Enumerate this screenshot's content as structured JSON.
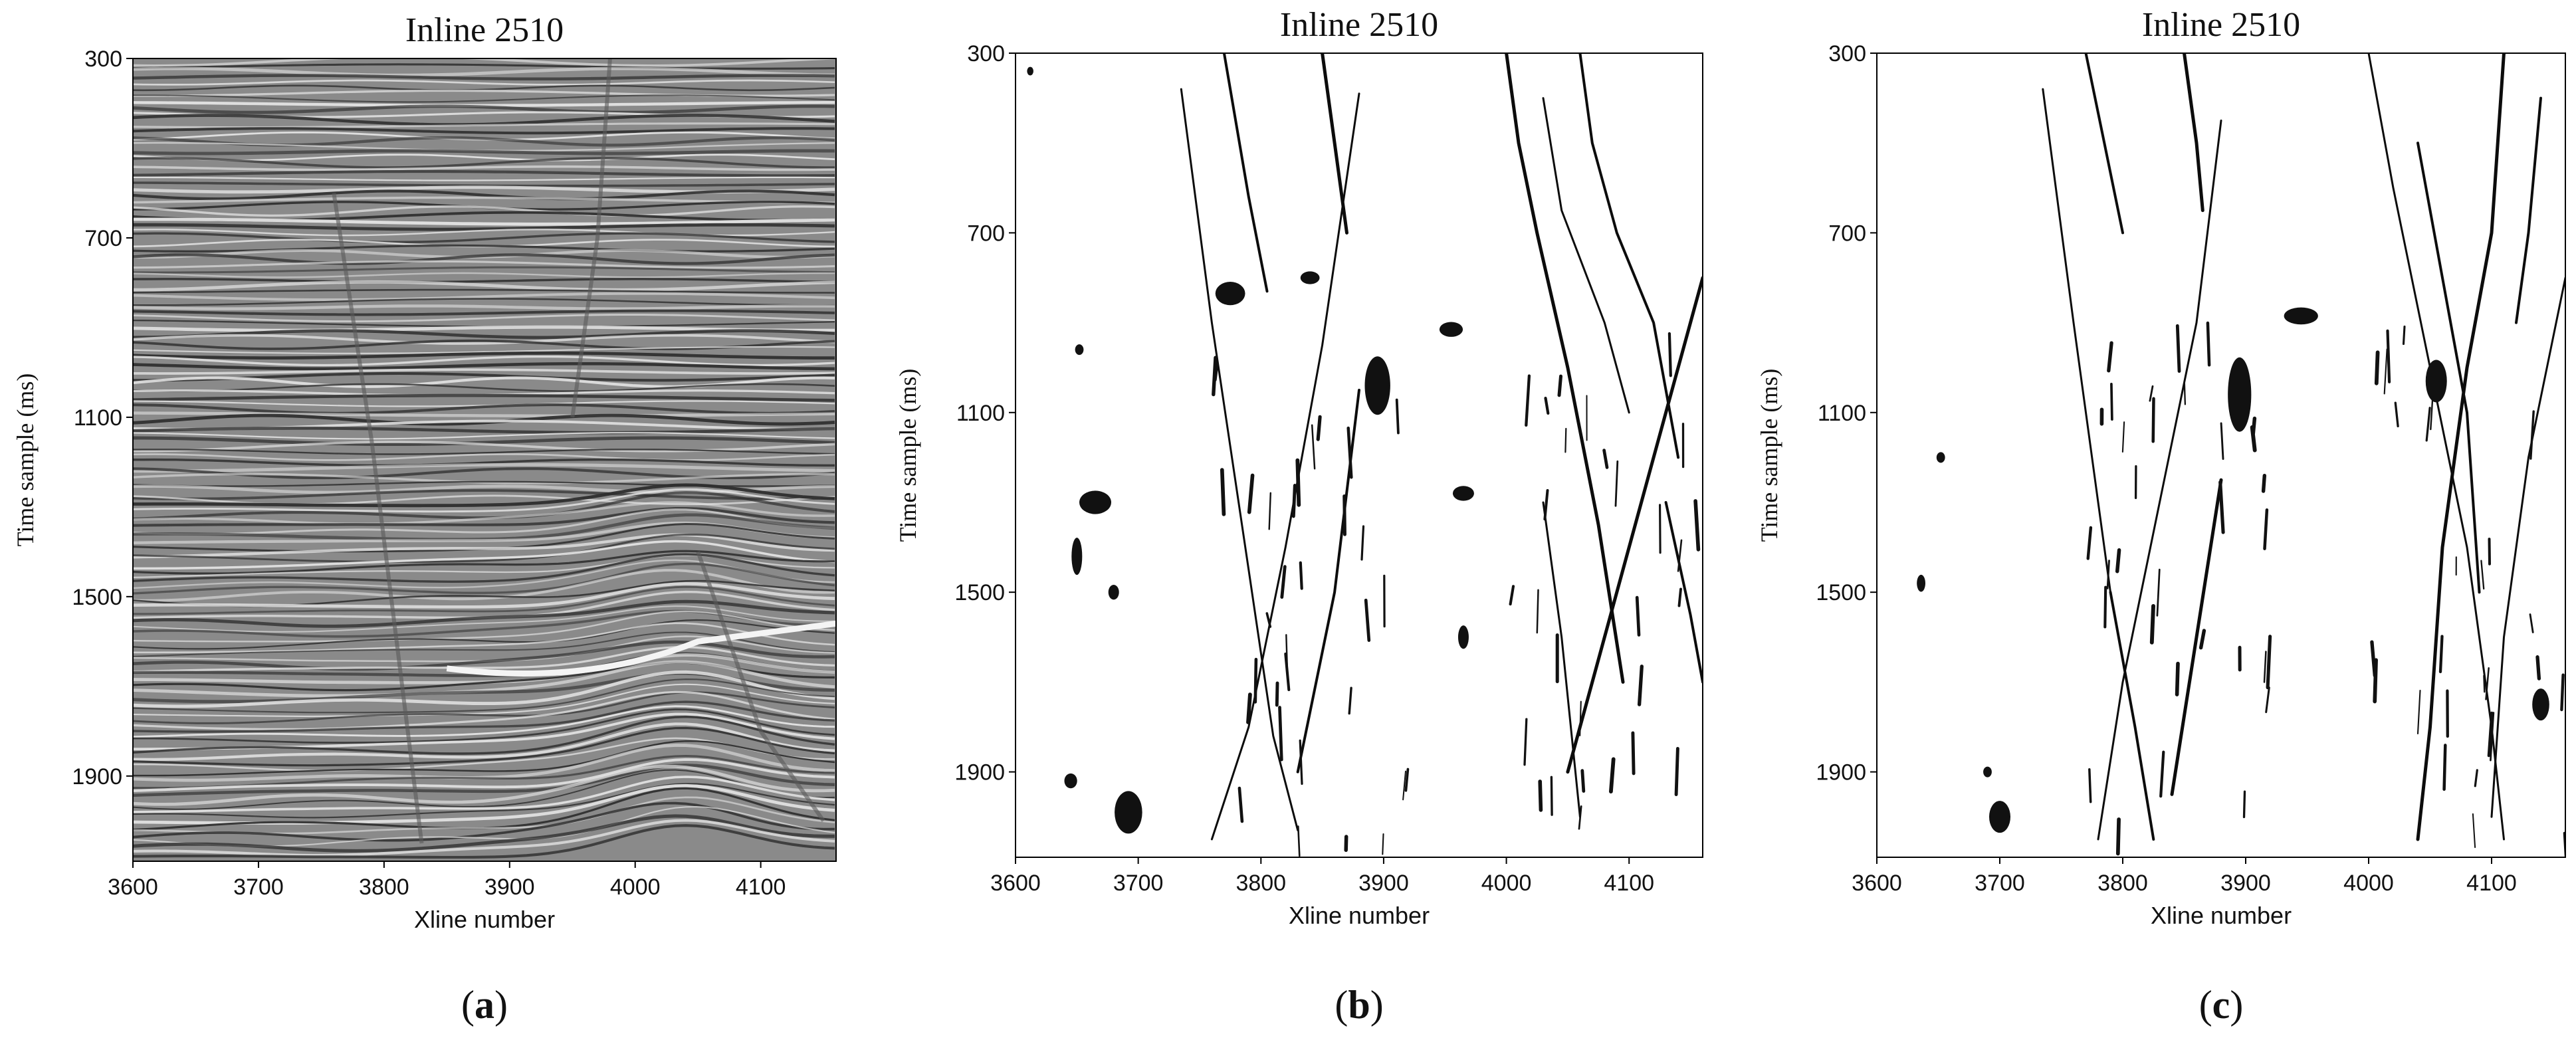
{
  "chart_data": [
    {
      "panel_label": "a",
      "type": "heatmap",
      "subtype": "seismic-amplitude-section",
      "title": "Inline 2510",
      "xlabel": "Xline number",
      "ylabel": "Time sample (ms)",
      "xlim": [
        3600,
        4160
      ],
      "ylim": [
        300,
        2090
      ],
      "y_inverted": true,
      "xticks": [
        "3600",
        "3700",
        "3800",
        "3900",
        "4000",
        "4100"
      ],
      "yticks": [
        "300",
        "700",
        "1100",
        "1500",
        "1900"
      ],
      "colormap": "gray",
      "grid": false,
      "faults": [
        {
          "points": [
            [
              3760,
              600
            ],
            [
              3790,
              1150
            ],
            [
              3810,
              1600
            ],
            [
              3830,
              2050
            ]
          ]
        },
        {
          "points": [
            [
              3980,
              300
            ],
            [
              3970,
              700
            ],
            [
              3950,
              1100
            ]
          ]
        },
        {
          "points": [
            [
              4050,
              1400
            ],
            [
              4100,
              1800
            ],
            [
              4150,
              2000
            ]
          ]
        }
      ]
    },
    {
      "panel_label": "b",
      "type": "heatmap",
      "subtype": "fault-probability",
      "title": "Inline 2510",
      "xlabel": "Xline number",
      "ylabel": "Time sample (ms)",
      "xlim": [
        3600,
        4160
      ],
      "ylim": [
        300,
        2090
      ],
      "y_inverted": true,
      "xticks": [
        "3600",
        "3700",
        "3800",
        "3900",
        "4000",
        "4100"
      ],
      "yticks": [
        "300",
        "700",
        "1100",
        "1500",
        "1900"
      ],
      "colormap": "gray_r",
      "grid": false,
      "faults": [
        {
          "points": [
            [
              3735,
              380
            ],
            [
              3760,
              900
            ],
            [
              3790,
              1450
            ],
            [
              3810,
              1820
            ],
            [
              3830,
              2030
            ]
          ]
        },
        {
          "points": [
            [
              3770,
              300
            ],
            [
              3790,
              620
            ],
            [
              3805,
              830
            ]
          ]
        },
        {
          "points": [
            [
              3850,
              300
            ],
            [
              3860,
              500
            ],
            [
              3870,
              700
            ]
          ]
        },
        {
          "points": [
            [
              3880,
              390
            ],
            [
              3850,
              950
            ],
            [
              3820,
              1400
            ],
            [
              3790,
              1800
            ],
            [
              3760,
              2050
            ]
          ]
        },
        {
          "points": [
            [
              3880,
              1050
            ],
            [
              3860,
              1500
            ],
            [
              3830,
              1900
            ]
          ]
        },
        {
          "points": [
            [
              4000,
              300
            ],
            [
              4010,
              500
            ],
            [
              4025,
              700
            ],
            [
              4050,
              1000
            ],
            [
              4075,
              1350
            ],
            [
              4095,
              1700
            ]
          ]
        },
        {
          "points": [
            [
              4030,
              400
            ],
            [
              4045,
              650
            ],
            [
              4080,
              900
            ],
            [
              4100,
              1100
            ]
          ]
        },
        {
          "points": [
            [
              4060,
              300
            ],
            [
              4070,
              500
            ],
            [
              4090,
              700
            ],
            [
              4120,
              900
            ],
            [
              4140,
              1200
            ]
          ]
        },
        {
          "points": [
            [
              4160,
              800
            ],
            [
              4120,
              1200
            ],
            [
              4080,
              1600
            ],
            [
              4050,
              1900
            ]
          ]
        },
        {
          "points": [
            [
              4030,
              1300
            ],
            [
              4045,
              1600
            ],
            [
              4060,
              2000
            ]
          ]
        },
        {
          "points": [
            [
              4130,
              1300
            ],
            [
              4150,
              1550
            ],
            [
              4160,
              1700
            ]
          ]
        }
      ],
      "blobs": [
        {
          "x": 3665,
          "y": 1300,
          "w": 30,
          "h": 22
        },
        {
          "x": 3650,
          "y": 1420,
          "w": 10,
          "h": 35
        },
        {
          "x": 3680,
          "y": 1500,
          "w": 10,
          "h": 14
        },
        {
          "x": 3692,
          "y": 1990,
          "w": 26,
          "h": 40
        },
        {
          "x": 3645,
          "y": 1920,
          "w": 12,
          "h": 14
        },
        {
          "x": 3775,
          "y": 835,
          "w": 28,
          "h": 22
        },
        {
          "x": 3840,
          "y": 800,
          "w": 18,
          "h": 12
        },
        {
          "x": 3895,
          "y": 1040,
          "w": 24,
          "h": 55
        },
        {
          "x": 3955,
          "y": 915,
          "w": 22,
          "h": 14
        },
        {
          "x": 3965,
          "y": 1280,
          "w": 20,
          "h": 14
        },
        {
          "x": 3965,
          "y": 1600,
          "w": 10,
          "h": 22
        },
        {
          "x": 3652,
          "y": 960,
          "w": 8,
          "h": 10
        },
        {
          "x": 3612,
          "y": 340,
          "w": 6,
          "h": 8
        }
      ]
    },
    {
      "panel_label": "c",
      "type": "heatmap",
      "subtype": "fault-probability",
      "title": "Inline 2510",
      "xlabel": "Xline number",
      "ylabel": "Time sample (ms)",
      "xlim": [
        3600,
        4160
      ],
      "ylim": [
        300,
        2090
      ],
      "y_inverted": true,
      "xticks": [
        "3600",
        "3700",
        "3800",
        "3900",
        "4000",
        "4100"
      ],
      "yticks": [
        "300",
        "700",
        "1100",
        "1500",
        "1900"
      ],
      "colormap": "gray_r",
      "grid": false,
      "faults": [
        {
          "points": [
            [
              3735,
              380
            ],
            [
              3760,
              900
            ],
            [
              3780,
              1300
            ],
            [
              3790,
              1500
            ]
          ]
        },
        {
          "points": [
            [
              3770,
              300
            ],
            [
              3785,
              500
            ],
            [
              3800,
              700
            ]
          ]
        },
        {
          "points": [
            [
              3850,
              300
            ],
            [
              3860,
              500
            ],
            [
              3865,
              650
            ]
          ]
        },
        {
          "points": [
            [
              3880,
              450
            ],
            [
              3860,
              900
            ],
            [
              3830,
              1300
            ],
            [
              3800,
              1700
            ],
            [
              3780,
              2050
            ]
          ]
        },
        {
          "points": [
            [
              3790,
              1500
            ],
            [
              3810,
              1800
            ],
            [
              3825,
              2050
            ]
          ]
        },
        {
          "points": [
            [
              3880,
              1250
            ],
            [
              3860,
              1600
            ],
            [
              3840,
              1950
            ]
          ]
        },
        {
          "points": [
            [
              4000,
              300
            ],
            [
              4020,
              600
            ],
            [
              4050,
              1000
            ],
            [
              4080,
              1400
            ],
            [
              4100,
              1800
            ],
            [
              4110,
              2050
            ]
          ]
        },
        {
          "points": [
            [
              4040,
              500
            ],
            [
              4060,
              800
            ],
            [
              4080,
              1100
            ],
            [
              4090,
              1500
            ]
          ]
        },
        {
          "points": [
            [
              4110,
              300
            ],
            [
              4100,
              700
            ],
            [
              4080,
              1000
            ],
            [
              4060,
              1400
            ],
            [
              4050,
              1800
            ],
            [
              4040,
              2050
            ]
          ]
        },
        {
          "points": [
            [
              4160,
              800
            ],
            [
              4130,
              1200
            ],
            [
              4110,
              1600
            ],
            [
              4100,
              2000
            ]
          ]
        },
        {
          "points": [
            [
              4140,
              400
            ],
            [
              4130,
              700
            ],
            [
              4120,
              900
            ]
          ]
        }
      ],
      "blobs": [
        {
          "x": 3895,
          "y": 1060,
          "w": 22,
          "h": 70
        },
        {
          "x": 3945,
          "y": 885,
          "w": 32,
          "h": 16
        },
        {
          "x": 3700,
          "y": 2000,
          "w": 20,
          "h": 30
        },
        {
          "x": 3690,
          "y": 1900,
          "w": 8,
          "h": 10
        },
        {
          "x": 3636,
          "y": 1480,
          "w": 8,
          "h": 16
        },
        {
          "x": 3652,
          "y": 1200,
          "w": 8,
          "h": 10
        },
        {
          "x": 4055,
          "y": 1030,
          "w": 20,
          "h": 40
        },
        {
          "x": 4140,
          "y": 1750,
          "w": 16,
          "h": 30
        }
      ]
    }
  ]
}
